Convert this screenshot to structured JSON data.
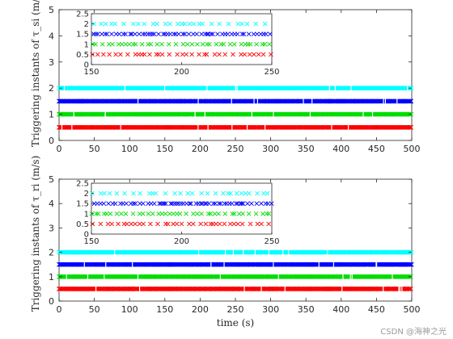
{
  "watermark": "CSDN @海神之光",
  "chart_data": [
    {
      "type": "scatter",
      "marker": "x",
      "ylabel": "Triggering instants of τ_si (m/s)",
      "xlabel": "",
      "xlim": [
        0,
        500
      ],
      "ylim": [
        0,
        5
      ],
      "xticks": [
        0,
        50,
        100,
        150,
        200,
        250,
        300,
        350,
        400,
        450,
        500
      ],
      "yticks": [
        0,
        1,
        2,
        3,
        4,
        5
      ],
      "grid": false,
      "series": [
        {
          "level": 0.5,
          "color": "#ff0000"
        },
        {
          "level": 1.0,
          "color": "#00dd00"
        },
        {
          "level": 1.5,
          "color": "#0000ff"
        },
        {
          "level": 2.0,
          "color": "#00ffff"
        }
      ],
      "inset": {
        "xlim": [
          150,
          250
        ],
        "ylim": [
          0,
          2.5
        ],
        "xticks": [
          150,
          200,
          250
        ],
        "yticks": [
          0,
          0.5,
          1,
          1.5,
          2,
          2.5
        ]
      }
    },
    {
      "type": "scatter",
      "marker": "x",
      "ylabel": "Triggering instants of τ_ri (m/s)",
      "xlabel": "time (s)",
      "xlim": [
        0,
        500
      ],
      "ylim": [
        0,
        5
      ],
      "xticks": [
        0,
        50,
        100,
        150,
        200,
        250,
        300,
        350,
        400,
        450,
        500
      ],
      "yticks": [
        0,
        1,
        2,
        3,
        4,
        5
      ],
      "grid": false,
      "series": [
        {
          "level": 0.5,
          "color": "#ff0000"
        },
        {
          "level": 1.0,
          "color": "#00dd00"
        },
        {
          "level": 1.5,
          "color": "#0000ff"
        },
        {
          "level": 2.0,
          "color": "#00ffff"
        }
      ],
      "inset": {
        "xlim": [
          150,
          250
        ],
        "ylim": [
          0,
          2.5
        ],
        "xticks": [
          150,
          200,
          250
        ],
        "yticks": [
          0,
          0.5,
          1,
          1.5,
          2,
          2.5
        ]
      }
    }
  ]
}
